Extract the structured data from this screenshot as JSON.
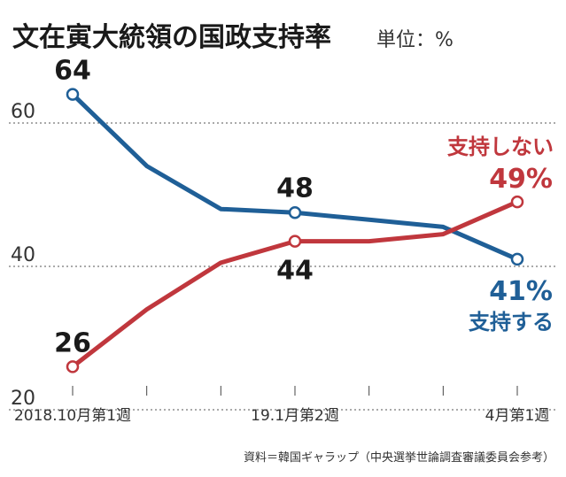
{
  "header": {
    "title": "文在寅大統領の国政支持率",
    "unit": "単位：%"
  },
  "source": "資料＝韓国ギャラップ（中央選挙世論調査審議委員会参考）",
  "colors": {
    "support": "#1f5f97",
    "oppose": "#c0373d",
    "grid": "#555555"
  },
  "chart_data": {
    "type": "line",
    "title": "文在寅大統領の国政支持率",
    "unit_label": "単位：%",
    "xlabel": "",
    "ylabel": "",
    "ylim": [
      20,
      66
    ],
    "yticks": [
      20,
      40,
      60
    ],
    "grid": true,
    "x_tick_labels": [
      {
        "index": 0,
        "label": "2018.10月第1週"
      },
      {
        "index": 3,
        "label": "19.1月第2週"
      },
      {
        "index": 6,
        "label": "4月第1週"
      }
    ],
    "series": [
      {
        "name": "支持する",
        "color": "#1f5f97",
        "values": [
          64,
          54,
          48,
          47.5,
          46.5,
          45.5,
          41
        ],
        "labels": [
          {
            "index": 0,
            "text": "64"
          },
          {
            "index": 3,
            "text": "48"
          },
          {
            "index": 6,
            "text": "41%"
          }
        ]
      },
      {
        "name": "支持しない",
        "color": "#c0373d",
        "values": [
          26,
          34,
          40.5,
          43.5,
          43.5,
          44.5,
          49
        ],
        "labels": [
          {
            "index": 0,
            "text": "26"
          },
          {
            "index": 3,
            "text": "44"
          },
          {
            "index": 6,
            "text": "49%"
          }
        ]
      }
    ]
  }
}
